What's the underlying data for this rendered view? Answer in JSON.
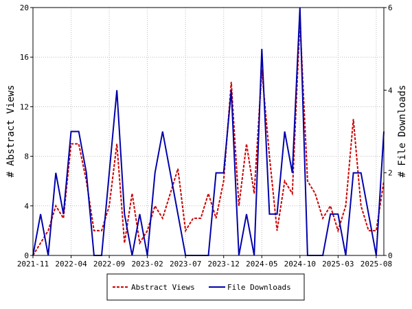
{
  "chart_data": {
    "type": "line",
    "ylabel_left": "# Abstract Views",
    "ylabel_right": "# File Downloads",
    "xlabel": "",
    "x_ticks": [
      "2021-11",
      "2022-04",
      "2022-09",
      "2023-02",
      "2023-07",
      "2023-12",
      "2024-05",
      "2024-10",
      "2025-03",
      "2025-08"
    ],
    "y_left_ticks": [
      "0",
      "4",
      "8",
      "12",
      "16",
      "20"
    ],
    "y_right_ticks": [
      "0",
      "2",
      "4",
      "6"
    ],
    "ylim_left": [
      0,
      20
    ],
    "ylim_right": [
      0,
      6
    ],
    "grid": true,
    "legend_position": "bottom",
    "x_months": [
      "2021-11",
      "2021-12",
      "2022-01",
      "2022-02",
      "2022-03",
      "2022-04",
      "2022-05",
      "2022-06",
      "2022-07",
      "2022-08",
      "2022-09",
      "2022-10",
      "2022-11",
      "2022-12",
      "2023-01",
      "2023-02",
      "2023-03",
      "2023-04",
      "2023-05",
      "2023-06",
      "2023-07",
      "2023-08",
      "2023-09",
      "2023-10",
      "2023-11",
      "2023-12",
      "2024-01",
      "2024-02",
      "2024-03",
      "2024-04",
      "2024-05",
      "2024-06",
      "2024-07",
      "2024-08",
      "2024-09",
      "2024-10",
      "2024-11",
      "2024-12",
      "2025-01",
      "2025-02",
      "2025-03",
      "2025-04",
      "2025-05",
      "2025-06",
      "2025-07",
      "2025-08",
      "2025-09"
    ],
    "series": [
      {
        "name": "Abstract Views",
        "axis": "left",
        "color": "#cc0000",
        "style": "dashed",
        "values": [
          0,
          1,
          2,
          4,
          3,
          9,
          9,
          6,
          2,
          2,
          4,
          9,
          1,
          5,
          1,
          2,
          4,
          3,
          5,
          7,
          2,
          3,
          3,
          5,
          3,
          6,
          14,
          4,
          9,
          5,
          15,
          8,
          2,
          6,
          5,
          19,
          6,
          5,
          3,
          4,
          2,
          4,
          11,
          4,
          2,
          2,
          6
        ]
      },
      {
        "name": "File Downloads",
        "axis": "right",
        "color": "#0000aa",
        "style": "solid",
        "values": [
          0,
          1,
          0,
          2,
          1,
          3,
          3,
          2,
          0,
          0,
          2,
          4,
          1,
          0,
          1,
          0,
          2,
          3,
          2,
          1,
          0,
          0,
          0,
          0,
          2,
          2,
          4,
          0,
          1,
          0,
          5,
          1,
          1,
          3,
          2,
          6,
          0,
          0,
          0,
          1,
          1,
          0,
          2,
          2,
          1,
          0,
          3
        ]
      }
    ]
  }
}
